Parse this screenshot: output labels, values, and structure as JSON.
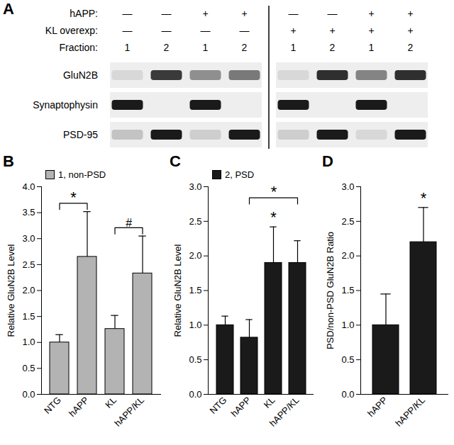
{
  "blot": {
    "panel": "A",
    "groups": [
      4,
      4
    ],
    "conditions": [
      {
        "label": "hAPP:",
        "values": [
          "—",
          "—",
          "+",
          "+",
          "—",
          "—",
          "+",
          "+"
        ]
      },
      {
        "label": "KL overexp:",
        "values": [
          "—",
          "—",
          "—",
          "—",
          "+",
          "+",
          "+",
          "+"
        ]
      },
      {
        "label": "Fraction:",
        "values": [
          1,
          2,
          1,
          2,
          1,
          2,
          1,
          2
        ]
      }
    ],
    "rows": [
      {
        "label": "GluN2B",
        "intensity": [
          0.1,
          0.85,
          0.45,
          0.55,
          0.1,
          0.9,
          0.5,
          0.9
        ]
      },
      {
        "label": "Synaptophysin",
        "intensity": [
          1,
          0,
          1,
          0,
          1,
          0,
          1,
          0
        ]
      },
      {
        "label": "PSD-95",
        "intensity": [
          0.2,
          1,
          0.15,
          1,
          0.15,
          1,
          0.1,
          1
        ]
      }
    ]
  },
  "chart_data": [
    {
      "panel": "B",
      "type": "bar",
      "categories": [
        "NTG",
        "hAPP",
        "KL",
        "hAPP/KL"
      ],
      "series": [
        {
          "name": "1, non-PSD",
          "color": "#b3b3b3",
          "values": [
            1.0,
            2.65,
            1.26,
            2.33
          ],
          "errors": [
            0.15,
            0.87,
            0.26,
            0.72
          ]
        }
      ],
      "ylabel": "Relative GluN2B Level",
      "ylim": [
        0,
        4
      ],
      "yticks": [
        {
          "value": 0,
          "label": "0.0"
        },
        {
          "value": 0.5,
          "label": "0.5"
        },
        {
          "value": 1,
          "label": "1.0"
        },
        {
          "value": 1.5,
          "label": "1.5"
        },
        {
          "value": 2,
          "label": "2.0"
        },
        {
          "value": 2.5,
          "label": "2.5"
        },
        {
          "value": 3,
          "label": "3.0"
        },
        {
          "value": 3.5,
          "label": "3.5"
        },
        {
          "value": 4,
          "label": "4.0"
        }
      ],
      "legend": "top-left",
      "annotations": [
        {
          "text": "*",
          "categories": [
            "NTG",
            "hAPP"
          ]
        },
        {
          "text": "#",
          "categories": [
            "KL",
            "hAPP/KL"
          ]
        }
      ]
    },
    {
      "panel": "C",
      "type": "bar",
      "categories": [
        "NTG",
        "hAPP",
        "KL",
        "hAPP/KL"
      ],
      "series": [
        {
          "name": "2, PSD",
          "color": "#1a1a1a",
          "values": [
            1.0,
            0.82,
            1.9,
            1.9
          ],
          "errors": [
            0.13,
            0.26,
            0.52,
            0.32
          ]
        }
      ],
      "ylabel": "Relative GluN2B Level",
      "ylim": [
        0,
        3
      ],
      "yticks": [
        {
          "value": 0,
          "label": "0.0"
        },
        {
          "value": 0.5,
          "label": "0.5"
        },
        {
          "value": 1,
          "label": "1.0"
        },
        {
          "value": 1.5,
          "label": "1.5"
        },
        {
          "value": 2,
          "label": "2.0"
        },
        {
          "value": 2.5,
          "label": "2.5"
        },
        {
          "value": 3,
          "label": "3.0"
        }
      ],
      "legend": "top-left",
      "annotations": [
        {
          "text": "*",
          "categories": [
            "KL"
          ]
        },
        {
          "text": "*",
          "categories": [
            "hAPP",
            "hAPP/KL"
          ]
        }
      ]
    },
    {
      "panel": "D",
      "type": "bar",
      "categories": [
        "hAPP",
        "hAPP/KL"
      ],
      "values": [
        1.0,
        2.2
      ],
      "errors": [
        0.45,
        0.5
      ],
      "color": "#1a1a1a",
      "ylabel": "PSD/non-PSD GluN2B Ratio",
      "ylim": [
        0,
        3
      ],
      "yticks": [
        {
          "value": 0,
          "label": "0.0"
        },
        {
          "value": 0.5,
          "label": "0.5"
        },
        {
          "value": 1,
          "label": "1.0"
        },
        {
          "value": 1.5,
          "label": "1.5"
        },
        {
          "value": 2,
          "label": "2.0"
        },
        {
          "value": 2.5,
          "label": "2.5"
        },
        {
          "value": 3,
          "label": "3.0"
        }
      ],
      "annotations": [
        {
          "text": "*",
          "categories": [
            "hAPP/KL"
          ]
        }
      ]
    }
  ]
}
